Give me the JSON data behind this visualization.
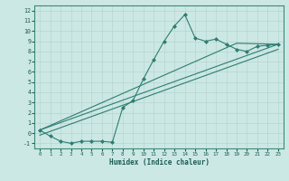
{
  "xlabel": "Humidex (Indice chaleur)",
  "bg_color": "#cce8e4",
  "line_color": "#2e7d72",
  "grid_color": "#b8d4d0",
  "xlim": [
    -0.5,
    23.5
  ],
  "ylim": [
    -1.5,
    12.5
  ],
  "xticks": [
    0,
    1,
    2,
    3,
    4,
    5,
    6,
    7,
    8,
    9,
    10,
    11,
    12,
    13,
    14,
    15,
    16,
    17,
    18,
    19,
    20,
    21,
    22,
    23
  ],
  "yticks": [
    -1,
    0,
    1,
    2,
    3,
    4,
    5,
    6,
    7,
    8,
    9,
    10,
    11,
    12
  ],
  "curve_x": [
    0,
    1,
    2,
    3,
    4,
    5,
    6,
    7,
    8,
    9,
    10,
    11,
    12,
    13,
    14,
    15,
    16,
    17,
    18,
    19,
    20,
    21,
    22,
    23
  ],
  "curve_y": [
    0.3,
    -0.3,
    -0.8,
    -1.0,
    -0.8,
    -0.8,
    -0.8,
    -0.9,
    2.5,
    3.2,
    5.3,
    7.2,
    9.0,
    10.5,
    11.6,
    9.3,
    9.0,
    9.2,
    8.7,
    8.2,
    8.0,
    8.5,
    8.6,
    8.7
  ],
  "line1_x": [
    0,
    19,
    23
  ],
  "line1_y": [
    0.3,
    8.8,
    8.7
  ],
  "line2_x": [
    0,
    23
  ],
  "line2_y": [
    0.3,
    8.7
  ],
  "line3_x": [
    0,
    23
  ],
  "line3_y": [
    -0.2,
    8.2
  ]
}
